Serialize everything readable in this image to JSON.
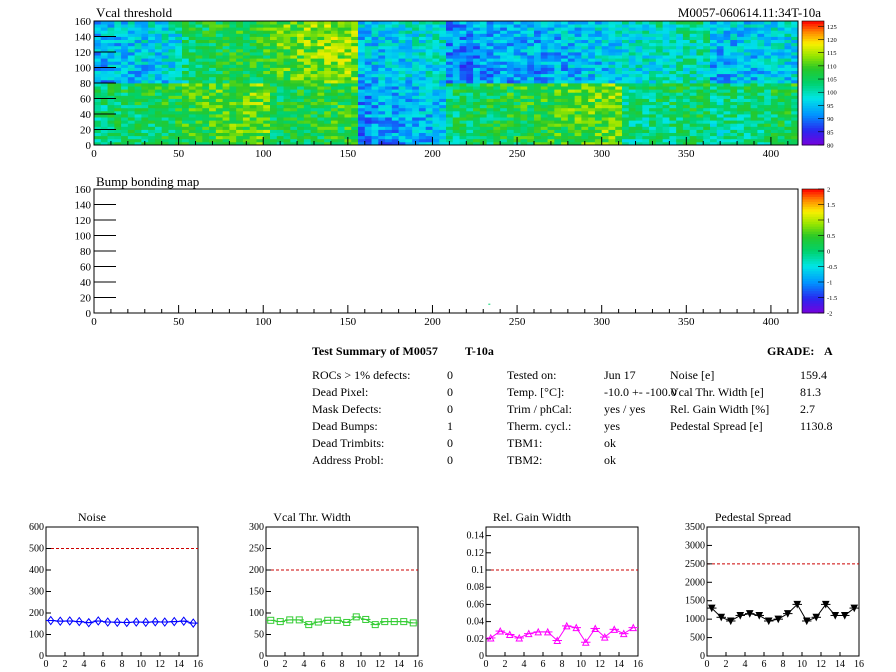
{
  "header": {
    "map1_title": "Vcal threshold",
    "module_id": "M0057-060614.11:34T-10a",
    "map2_title": "Bump bonding map"
  },
  "maps": [
    {
      "name": "vcal-threshold",
      "x_ticks": [
        "0",
        "50",
        "100",
        "150",
        "200",
        "250",
        "300",
        "350",
        "400"
      ],
      "y_ticks": [
        "0",
        "20",
        "40",
        "60",
        "80",
        "100",
        "120",
        "140",
        "160"
      ],
      "xlim": [
        0,
        416
      ],
      "ylim": [
        0,
        160
      ],
      "colorbar_ticks": [
        "80",
        "85",
        "90",
        "95",
        "100",
        "105",
        "110",
        "115",
        "120",
        "125"
      ],
      "colorbar_range": [
        80,
        127
      ],
      "roc_tile_levels_upper": [
        96,
        106,
        112,
        97,
        93,
        95,
        100,
        96
      ],
      "roc_tile_levels_lower": [
        105,
        110,
        107,
        94,
        106,
        110,
        104,
        104
      ]
    },
    {
      "name": "bump-bonding",
      "x_ticks": [
        "0",
        "50",
        "100",
        "150",
        "200",
        "250",
        "300",
        "350",
        "400"
      ],
      "y_ticks": [
        "0",
        "20",
        "40",
        "60",
        "80",
        "100",
        "120",
        "140",
        "160"
      ],
      "xlim": [
        0,
        416
      ],
      "ylim": [
        0,
        160
      ],
      "colorbar_ticks": [
        "-2",
        "-1.5",
        "-1",
        "-0.5",
        "0",
        "0.5",
        "1",
        "1.5",
        "2"
      ],
      "colorbar_range": [
        -2,
        2
      ],
      "marked_pixel": {
        "x": 233,
        "y": 12
      }
    }
  ],
  "summary": {
    "title": "Test Summary of M0057",
    "tag": "T-10a",
    "grade_label": "GRADE:",
    "grade": "A",
    "defects": [
      {
        "label": "ROCs > 1% defects:",
        "value": "0"
      },
      {
        "label": "Dead Pixel:",
        "value": "0"
      },
      {
        "label": "Mask Defects:",
        "value": "0"
      },
      {
        "label": "Dead Bumps:",
        "value": "1"
      },
      {
        "label": "Dead Trimbits:",
        "value": "0"
      },
      {
        "label": "Address Probl:",
        "value": "0"
      }
    ],
    "conditions": [
      {
        "label": "Tested on:",
        "value": "Jun 17"
      },
      {
        "label": "Temp. [°C]:",
        "value": "-10.0 +- -100.0"
      },
      {
        "label": "Trim / phCal:",
        "value": "yes / yes"
      },
      {
        "label": "Therm. cycl.:",
        "value": "yes"
      },
      {
        "label": "TBM1:",
        "value": "ok"
      },
      {
        "label": "TBM2:",
        "value": "ok"
      }
    ],
    "results": [
      {
        "label": "Noise [e]",
        "value": "159.4"
      },
      {
        "label": "Vcal Thr. Width [e]",
        "value": "81.3"
      },
      {
        "label": "Rel. Gain Width [%]",
        "value": "2.7"
      },
      {
        "label": "Pedestal Spread [e]",
        "value": "1130.8"
      }
    ]
  },
  "chart_data": [
    {
      "type": "line",
      "title": "Noise",
      "x": [
        0,
        1,
        2,
        3,
        4,
        5,
        6,
        7,
        8,
        9,
        10,
        11,
        12,
        13,
        14,
        15
      ],
      "values": [
        165,
        162,
        163,
        160,
        155,
        163,
        158,
        157,
        156,
        158,
        157,
        159,
        158,
        160,
        162,
        153
      ],
      "xlim": [
        0,
        16
      ],
      "ylim": [
        0,
        600
      ],
      "x_ticks": [
        "0",
        "2",
        "4",
        "6",
        "8",
        "10",
        "12",
        "14",
        "16"
      ],
      "y_ticks": [
        "0",
        "100",
        "200",
        "300",
        "400",
        "500",
        "600"
      ],
      "limit": 500,
      "color": "#0000ff",
      "marker": "diamond"
    },
    {
      "type": "line",
      "title": "Vcal Thr. Width",
      "x": [
        0,
        1,
        2,
        3,
        4,
        5,
        6,
        7,
        8,
        9,
        10,
        11,
        12,
        13,
        14,
        15
      ],
      "values": [
        83,
        80,
        84,
        84,
        73,
        79,
        83,
        83,
        78,
        91,
        85,
        73,
        80,
        80,
        80,
        77
      ],
      "xlim": [
        0,
        16
      ],
      "ylim": [
        0,
        300
      ],
      "x_ticks": [
        "0",
        "2",
        "4",
        "6",
        "8",
        "10",
        "12",
        "14",
        "16"
      ],
      "y_ticks": [
        "0",
        "50",
        "100",
        "150",
        "200",
        "250",
        "300"
      ],
      "limit": 200,
      "color": "#33cc33",
      "marker": "square"
    },
    {
      "type": "line",
      "title": "Rel. Gain Width",
      "x": [
        0,
        1,
        2,
        3,
        4,
        5,
        6,
        7,
        8,
        9,
        10,
        11,
        12,
        13,
        14,
        15
      ],
      "values": [
        0.021,
        0.029,
        0.025,
        0.021,
        0.026,
        0.028,
        0.028,
        0.018,
        0.035,
        0.033,
        0.016,
        0.032,
        0.022,
        0.031,
        0.026,
        0.033
      ],
      "xlim": [
        0,
        16
      ],
      "ylim": [
        0,
        0.15
      ],
      "x_ticks": [
        "0",
        "2",
        "4",
        "6",
        "8",
        "10",
        "12",
        "14",
        "16"
      ],
      "y_ticks": [
        "0",
        "0.02",
        "0.04",
        "0.06",
        "0.08",
        "0.1",
        "0.12",
        "0.14"
      ],
      "limit": 0.1,
      "color": "#ff00ff",
      "marker": "triangle-up"
    },
    {
      "type": "line",
      "title": "Pedestal Spread",
      "x": [
        0,
        1,
        2,
        3,
        4,
        5,
        6,
        7,
        8,
        9,
        10,
        11,
        12,
        13,
        14,
        15
      ],
      "values": [
        1300,
        1050,
        950,
        1100,
        1150,
        1100,
        950,
        1000,
        1150,
        1400,
        950,
        1050,
        1400,
        1100,
        1100,
        1300
      ],
      "xlim": [
        0,
        16
      ],
      "ylim": [
        0,
        3500
      ],
      "x_ticks": [
        "0",
        "2",
        "4",
        "6",
        "8",
        "10",
        "12",
        "14",
        "16"
      ],
      "y_ticks": [
        "0",
        "500",
        "1000",
        "1500",
        "2000",
        "2500",
        "3000",
        "3500"
      ],
      "limit": 2500,
      "color": "#000000",
      "marker": "triangle-down"
    }
  ]
}
